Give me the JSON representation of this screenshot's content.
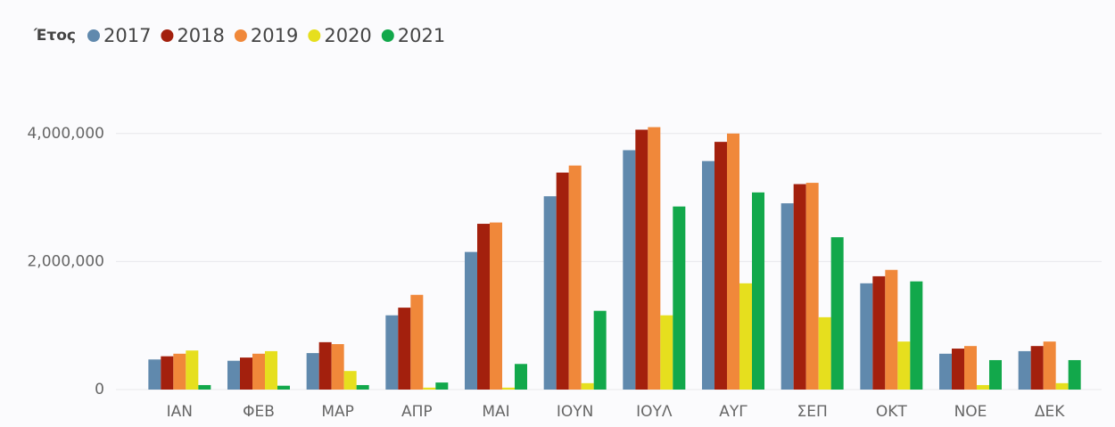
{
  "chart_data": {
    "type": "bar",
    "legend_title": "Έτος",
    "categories": [
      "ΙΑΝ",
      "ΦΕΒ",
      "ΜΑΡ",
      "ΑΠΡ",
      "ΜΑΙ",
      "ΙΟΥΝ",
      "ΙΟΥΛ",
      "ΑΥΓ",
      "ΣΕΠ",
      "ΟΚΤ",
      "ΝΟΕ",
      "ΔΕΚ"
    ],
    "series": [
      {
        "name": "2017",
        "color": "#6089ad",
        "values": [
          470000,
          450000,
          570000,
          1160000,
          2150000,
          3020000,
          3740000,
          3570000,
          2910000,
          1660000,
          560000,
          600000
        ]
      },
      {
        "name": "2018",
        "color": "#a3200d",
        "values": [
          520000,
          500000,
          740000,
          1280000,
          2590000,
          3390000,
          4060000,
          3870000,
          3210000,
          1770000,
          640000,
          680000
        ]
      },
      {
        "name": "2019",
        "color": "#f0883a",
        "values": [
          560000,
          560000,
          710000,
          1480000,
          2610000,
          3500000,
          4100000,
          4000000,
          3230000,
          1870000,
          680000,
          750000
        ]
      },
      {
        "name": "2020",
        "color": "#e6df1e",
        "values": [
          610000,
          600000,
          290000,
          30000,
          30000,
          100000,
          1160000,
          1660000,
          1130000,
          750000,
          70000,
          100000
        ]
      },
      {
        "name": "2021",
        "color": "#12a84b",
        "values": [
          70000,
          60000,
          70000,
          110000,
          400000,
          1230000,
          2860000,
          3080000,
          2380000,
          1690000,
          460000,
          460000
        ]
      }
    ],
    "ylim": [
      0,
      5000000
    ],
    "yticks": [
      0,
      {
        "value": 2000000,
        "label": "2,000,000"
      },
      {
        "value": 4000000,
        "label": "4,000,000"
      }
    ],
    "grid": true,
    "legend": "top-left"
  }
}
